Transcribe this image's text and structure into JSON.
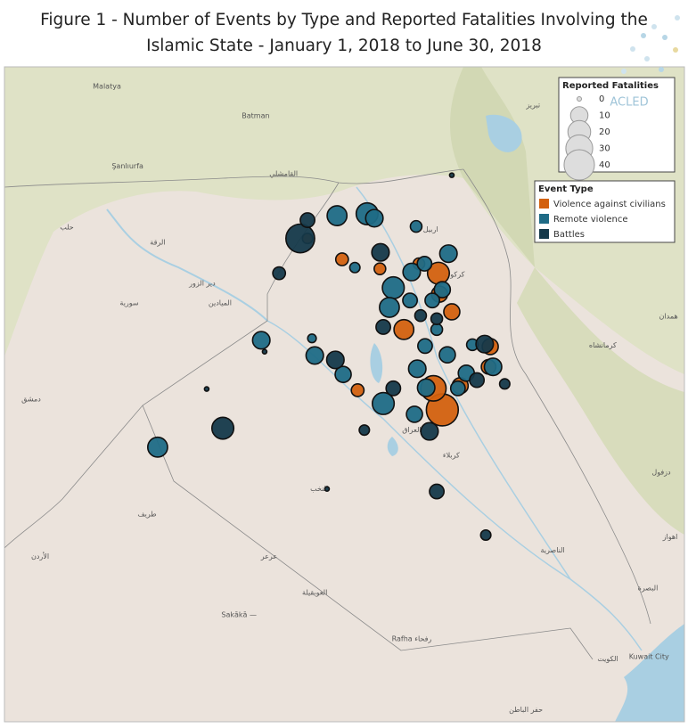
{
  "chart_data": {
    "type": "bubble-map",
    "title": "Figure 1 - Number of Events by Type and Reported Fatalities Involving the Islamic State - January 1, 2018 to June 30, 2018",
    "brand": "ACLED",
    "extent": {
      "lon": [
        36.38,
        48.73
      ],
      "lat": [
        39.72,
        28.21
      ]
    },
    "size_legend": {
      "title": "Reported Fatalities",
      "values": [
        0,
        10,
        20,
        30,
        40
      ]
    },
    "legend_title": "Event Type",
    "series": [
      {
        "name": "Violence against civilians",
        "color": "#d3610f",
        "lon": [
          44.32,
          44.16,
          44.25,
          43.63,
          44.27,
          44.49,
          44.64,
          45.18,
          45.15,
          42.52,
          42.8,
          43.2,
          43.9,
          41.9
        ],
        "lat": [
          33.24,
          33.58,
          35.4,
          34.51,
          35.07,
          34.79,
          33.62,
          34.24,
          33.92,
          35.62,
          33.55,
          35.47,
          35.55,
          35.95
        ],
        "fatalities": [
          45,
          26,
          18,
          14,
          8,
          8,
          8,
          8,
          6,
          4,
          4,
          3,
          3,
          2
        ]
      },
      {
        "name": "Remote violence",
        "color": "#1f6b86",
        "lon": [
          42.97,
          43.44,
          43.26,
          42.43,
          43.37,
          39.21,
          44.43,
          43.77,
          41.07,
          42.03,
          43.87,
          45.23,
          44.03,
          43.1,
          42.54,
          44.41,
          44.75,
          43.82,
          44.32,
          44.0,
          43.74,
          44.01,
          44.6,
          44.14,
          43.85,
          44.22,
          44.86,
          42.75,
          41.98
        ],
        "lat": [
          36.34,
          35.17,
          33.34,
          36.31,
          34.86,
          32.65,
          35.71,
          35.42,
          34.34,
          34.1,
          33.89,
          33.92,
          33.59,
          36.27,
          33.8,
          34.11,
          33.82,
          33.17,
          35.14,
          35.55,
          34.97,
          34.25,
          33.58,
          34.97,
          36.14,
          34.51,
          34.27,
          35.49,
          34.37
        ],
        "fatalities": [
          18,
          18,
          18,
          14,
          14,
          14,
          10,
          10,
          10,
          10,
          10,
          10,
          10,
          10,
          8,
          8,
          8,
          8,
          8,
          6,
          6,
          6,
          6,
          6,
          3,
          3,
          3,
          2,
          1
        ]
      },
      {
        "name": "Battles",
        "color": "#15394a",
        "lon": [
          41.77,
          40.38,
          43.21,
          42.4,
          45.08,
          44.09,
          41.9,
          43.26,
          43.44,
          44.22,
          44.94,
          41.39,
          43.93,
          44.22,
          45.1,
          42.92,
          45.44,
          42.25,
          40.09,
          41.13,
          44.49
        ],
        "lat": [
          35.95,
          32.95,
          35.73,
          34.03,
          34.28,
          32.9,
          36.24,
          34.55,
          33.58,
          31.95,
          33.71,
          35.4,
          34.73,
          34.68,
          31.26,
          32.92,
          33.65,
          31.99,
          33.57,
          34.16,
          36.95
        ],
        "fatalities": [
          35,
          18,
          10,
          10,
          10,
          10,
          6,
          6,
          6,
          6,
          6,
          4,
          3,
          3,
          2,
          2,
          2,
          0,
          0,
          0,
          0
        ]
      }
    ],
    "places": [
      {
        "label": "Malatya",
        "lon": 38.3,
        "lat": 38.35
      },
      {
        "label": "Batman",
        "lon": 40.97,
        "lat": 37.89
      },
      {
        "label": "Şanlıurfa",
        "lon": 38.67,
        "lat": 37.09
      },
      {
        "label": "القامشلي",
        "lon": 41.47,
        "lat": 36.97
      },
      {
        "label": "حلب",
        "lon": 37.58,
        "lat": 36.13
      },
      {
        "label": "الرقة",
        "lon": 39.21,
        "lat": 35.89
      },
      {
        "label": "دير الزور",
        "lon": 40.01,
        "lat": 35.24
      },
      {
        "label": "الميادين",
        "lon": 40.33,
        "lat": 34.93
      },
      {
        "label": "سورية",
        "lon": 38.7,
        "lat": 34.93
      },
      {
        "label": "دمشق",
        "lon": 36.94,
        "lat": 33.41
      },
      {
        "label": "الأردن",
        "lon": 37.1,
        "lat": 30.92
      },
      {
        "label": "طريف",
        "lon": 39.02,
        "lat": 31.59
      },
      {
        "label": "عرعر",
        "lon": 41.21,
        "lat": 30.92
      },
      {
        "label": "العويقيلة",
        "lon": 42.03,
        "lat": 30.35
      },
      {
        "label": "Sakākā —",
        "lon": 40.67,
        "lat": 30.0
      },
      {
        "label": "Rafha رفحاء",
        "lon": 43.77,
        "lat": 29.62
      },
      {
        "label": "Kuwait City",
        "lon": 48.03,
        "lat": 29.34
      },
      {
        "label": "الكويت",
        "lon": 47.29,
        "lat": 29.3
      },
      {
        "label": "العراق",
        "lon": 43.77,
        "lat": 32.92
      },
      {
        "label": "كربلاء",
        "lon": 44.48,
        "lat": 32.52
      },
      {
        "label": "النخب",
        "lon": 42.11,
        "lat": 31.99
      },
      {
        "label": "الناصرية",
        "lon": 46.3,
        "lat": 31.02
      },
      {
        "label": "البصرة",
        "lon": 48.01,
        "lat": 30.42
      },
      {
        "label": "اهواز",
        "lon": 48.41,
        "lat": 31.23
      },
      {
        "label": "دزفول",
        "lon": 48.25,
        "lat": 32.25
      },
      {
        "label": "همدان",
        "lon": 48.38,
        "lat": 34.72
      },
      {
        "label": "کرمانشاه",
        "lon": 47.2,
        "lat": 34.26
      },
      {
        "label": "تبريز",
        "lon": 45.95,
        "lat": 38.06
      },
      {
        "label": "كركوك",
        "lon": 44.54,
        "lat": 35.38
      },
      {
        "label": "اربيل",
        "lon": 44.11,
        "lat": 36.09
      },
      {
        "label": "حفر الباطن",
        "lon": 45.82,
        "lat": 28.5
      }
    ]
  }
}
